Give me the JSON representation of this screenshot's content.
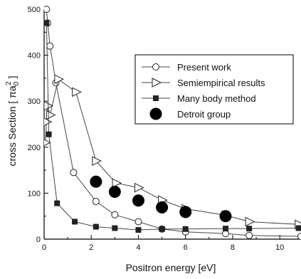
{
  "chart_data": {
    "type": "scatter",
    "xlabel": "Positron energy [eV]",
    "ylabel": "cross Section [ πa₀² ]",
    "ylabel_parts": {
      "pre": "cross Section [ ",
      "pi": "π",
      "a": "a",
      "sub": "0",
      "sup": "2",
      "post": " ]"
    },
    "xlim": [
      0,
      10.9
    ],
    "ylim": [
      0,
      500
    ],
    "xticks": [
      0,
      2,
      4,
      6,
      8,
      10
    ],
    "yticks": [
      0,
      100,
      200,
      300,
      400,
      500
    ],
    "grid": false,
    "legend_position": "top-right",
    "series": [
      {
        "name": "Present work",
        "marker": "open-circle",
        "connected": true,
        "color": "#222222",
        "x": [
          0.1,
          0.15,
          0.25,
          0.5,
          1.25,
          2.2,
          3.0,
          4.0,
          5.0,
          6.0,
          7.7,
          8.7,
          10.9
        ],
        "y": [
          500,
          470,
          420,
          340,
          145,
          82,
          53,
          38,
          22,
          16,
          12,
          8,
          6
        ]
      },
      {
        "name": "Semiempirical results",
        "marker": "open-triangle-right",
        "connected": true,
        "color": "#222222",
        "x": [
          0.05,
          0.1,
          0.15,
          0.25,
          0.6,
          1.35,
          2.2,
          3.05,
          4.0,
          5.0,
          6.0,
          7.7,
          8.7,
          10.8
        ],
        "y": [
          210,
          255,
          290,
          270,
          348,
          320,
          170,
          122,
          112,
          85,
          66,
          52,
          38,
          32
        ]
      },
      {
        "name": "Many body method",
        "marker": "filled-square",
        "connected": true,
        "color": "#222222",
        "x": [
          0.1,
          0.2,
          0.55,
          1.3,
          2.2,
          3.0,
          4.0,
          5.0,
          6.0,
          7.7,
          8.7,
          10.8
        ],
        "y": [
          470,
          228,
          78,
          38,
          27,
          24,
          20,
          22,
          22,
          23,
          23,
          24
        ]
      },
      {
        "name": "Detroit group",
        "marker": "filled-circle",
        "connected": false,
        "color": "#000000",
        "x": [
          2.2,
          3.0,
          4.0,
          5.0,
          6.0,
          7.7
        ],
        "y": [
          125,
          103,
          84,
          69,
          59,
          50
        ]
      }
    ]
  }
}
